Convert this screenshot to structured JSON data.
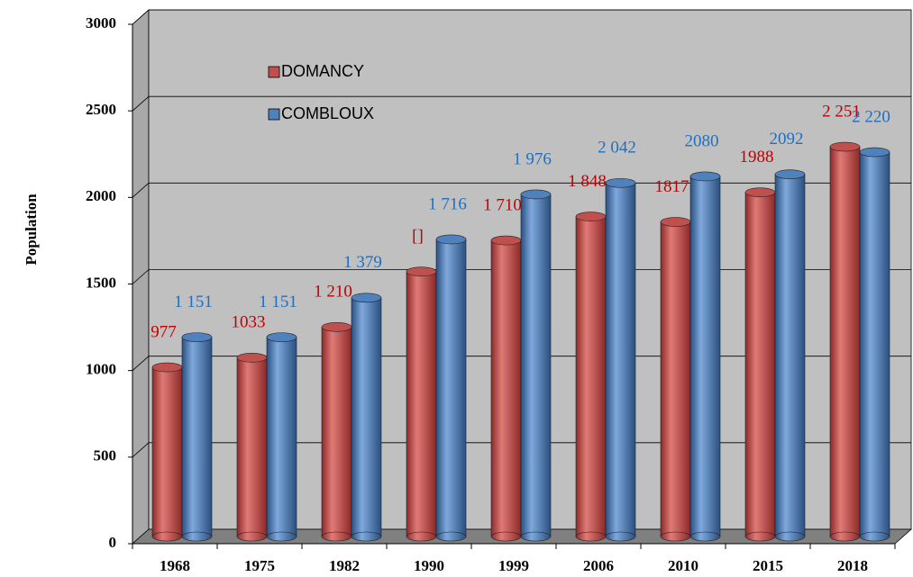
{
  "chart_data": {
    "type": "bar3d",
    "ylabel": "Population",
    "categories": [
      "1968",
      "1975",
      "1982",
      "1990",
      "1999",
      "2006",
      "2010",
      "2015",
      "2018"
    ],
    "series": [
      {
        "name": "DOMANCY",
        "color": "#c0504d",
        "label_color": "#c00000",
        "values": [
          977,
          1033,
          1210,
          1530,
          1710,
          1848,
          1817,
          1988,
          2251
        ],
        "value_labels": [
          "977",
          "1033",
          "1 210",
          "[]",
          "1 710",
          "1 848",
          "1817",
          "1988",
          "2 251"
        ]
      },
      {
        "name": "COMBLOUX",
        "color": "#4f81bd",
        "label_color": "#1f6fbf",
        "values": [
          1151,
          1151,
          1379,
          1716,
          1976,
          2042,
          2080,
          2092,
          2220
        ],
        "value_labels": [
          "1 151",
          "1 151",
          "1 379",
          "1 716",
          "1 976",
          "2 042",
          "2080",
          "2092",
          "2 220"
        ]
      }
    ],
    "ylim": [
      0,
      3000
    ],
    "yticks": [
      0,
      500,
      1000,
      1500,
      2000,
      2500,
      3000
    ],
    "grid": true
  }
}
